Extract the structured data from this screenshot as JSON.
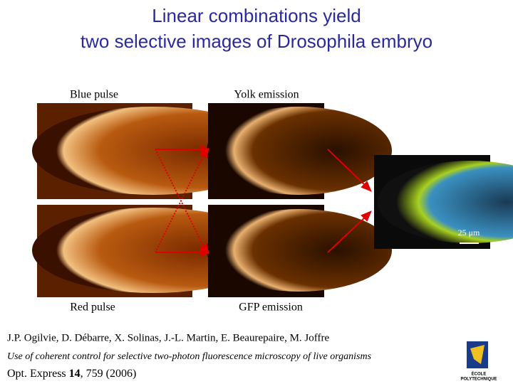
{
  "header": {
    "title": [
      "Linear combinations yield",
      "two selective images of Drosophila embryo"
    ]
  },
  "panels": {
    "top_left": "Blue pulse",
    "top_middle": "Yolk emission",
    "bottom_left": "Red pulse",
    "bottom_middle": "GFP emission",
    "scale_bar": "25 μm"
  },
  "citation": {
    "authors": "J.P. Ogilvie, D. Débarre, X. Solinas, J.-L. Martin, E. Beaurepaire, M. Joffre",
    "paper_title": "Use of coherent control for selective two-photon fluorescence microscopy of live organisms",
    "journal": "Opt. Express",
    "volume": "14",
    "pages": "759 (2006)"
  },
  "logo": [
    "ÉCOLE",
    "POLYTECHNIQUE"
  ]
}
